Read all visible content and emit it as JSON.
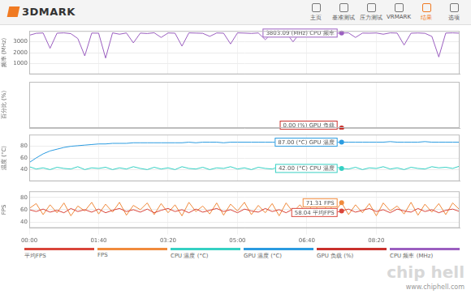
{
  "app": {
    "logo": "3DMARK",
    "nav": [
      "主页",
      "基准测试",
      "压力测试",
      "VRMARK",
      "结果",
      "选项"
    ],
    "active": "结果"
  },
  "watermark": {
    "logo": "chip hell",
    "url": "www.chiphell.com"
  },
  "chart_data": [
    {
      "type": "line",
      "ylabel": "频率 (MHz)",
      "grid": true,
      "legend": "bottom",
      "tick_labels": "y",
      "x": [
        0,
        10,
        20,
        30,
        40,
        50,
        60,
        70,
        80,
        90,
        100,
        110,
        120,
        130,
        140,
        150,
        160,
        170,
        180,
        190,
        200,
        210,
        220,
        230,
        240,
        250,
        260,
        270,
        280,
        290,
        300,
        310,
        320,
        330,
        340,
        350,
        360,
        370,
        380,
        390,
        400,
        410,
        420,
        430,
        440,
        450,
        460,
        470,
        480,
        490,
        500,
        510,
        520,
        530,
        540,
        550,
        560,
        570,
        580,
        590,
        600,
        610,
        620
      ],
      "xlim": [
        0,
        620
      ],
      "xticks": [
        {
          "value": 0,
          "label": "00:00"
        },
        {
          "value": 100,
          "label": "01:40"
        },
        {
          "value": 200,
          "label": "03:20"
        },
        {
          "value": 300,
          "label": "05:00"
        },
        {
          "value": 400,
          "label": "06:40"
        },
        {
          "value": 500,
          "label": "08:20"
        }
      ],
      "ylim": [
        0,
        4000
      ],
      "yticks": [
        1000,
        2000,
        3000
      ],
      "series": [
        {
          "name": "CPU 频率 (MHz)",
          "color": "#9b5fc0",
          "values": [
            3600,
            3780,
            3810,
            2400,
            3790,
            3820,
            3750,
            3300,
            1700,
            3800,
            3790,
            1500,
            3820,
            3700,
            3810,
            2900,
            3800,
            3760,
            3830,
            3400,
            3810,
            3790,
            2600,
            3820,
            3800,
            3780,
            3500,
            3810,
            3790,
            2800,
            3820,
            3800,
            3770,
            3810,
            3200,
            3800,
            3790,
            3820,
            3000,
            3810,
            3780,
            3800,
            3600,
            3810,
            3790,
            3803.09,
            3820,
            3400,
            3800,
            3790,
            3810,
            3700,
            3820,
            3800,
            2700,
            3790,
            3810,
            3780,
            3500,
            1600,
            3800,
            3820,
            3790
          ]
        }
      ],
      "annotations": [
        {
          "text": "3803.09 (MHz) CPU 频率",
          "series": "CPU 频率 (MHz)",
          "x": 450,
          "y": 3803.09
        }
      ]
    },
    {
      "type": "line",
      "ylabel": "百分比 (%)",
      "grid": true,
      "legend": "bottom",
      "tick_labels": false,
      "x": [
        0,
        10,
        20,
        30,
        40,
        50,
        60,
        70,
        80,
        90,
        100,
        110,
        120,
        130,
        140,
        150,
        160,
        170,
        180,
        190,
        200,
        210,
        220,
        230,
        240,
        250,
        260,
        270,
        280,
        290,
        300,
        310,
        320,
        330,
        340,
        350,
        360,
        370,
        380,
        390,
        400,
        410,
        420,
        430,
        440,
        450,
        460,
        470,
        480,
        490,
        500,
        510,
        520,
        530,
        540,
        550,
        560,
        570,
        580,
        590,
        600,
        610,
        620
      ],
      "xlim": [
        0,
        620
      ],
      "xticks": [
        {
          "value": 0,
          "label": "00:00"
        },
        {
          "value": 100,
          "label": "01:40"
        },
        {
          "value": 200,
          "label": "03:20"
        },
        {
          "value": 300,
          "label": "05:00"
        },
        {
          "value": 400,
          "label": "06:40"
        },
        {
          "value": 500,
          "label": "08:20"
        }
      ],
      "ylim": [
        0,
        100
      ],
      "yticks": [],
      "series": [
        {
          "name": "GPU 负载 (%)",
          "color": "#c9302c",
          "values": [
            0,
            0,
            0,
            0,
            0,
            0,
            0,
            0,
            0,
            0,
            0,
            0,
            0,
            0,
            0,
            0,
            0,
            0,
            0,
            0,
            0,
            0,
            0,
            0,
            0,
            0,
            0,
            0,
            0,
            0,
            0,
            0,
            0,
            0,
            0,
            0,
            0,
            0,
            0,
            0,
            0,
            0,
            0,
            0,
            0,
            0,
            0,
            0,
            0,
            0,
            0,
            0,
            0,
            0,
            0,
            0,
            0,
            0,
            0,
            0,
            0,
            0,
            0
          ]
        }
      ],
      "annotations": [
        {
          "text": "0.00 (%) GPU 负载",
          "series": "GPU 负载 (%)",
          "x": 450,
          "y": 0
        }
      ]
    },
    {
      "type": "line",
      "ylabel": "温度 (°C)",
      "grid": true,
      "legend": "bottom",
      "tick_labels": "y",
      "x": [
        0,
        10,
        20,
        30,
        40,
        50,
        60,
        70,
        80,
        90,
        100,
        110,
        120,
        130,
        140,
        150,
        160,
        170,
        180,
        190,
        200,
        210,
        220,
        230,
        240,
        250,
        260,
        270,
        280,
        290,
        300,
        310,
        320,
        330,
        340,
        350,
        360,
        370,
        380,
        390,
        400,
        410,
        420,
        430,
        440,
        450,
        460,
        470,
        480,
        490,
        500,
        510,
        520,
        530,
        540,
        550,
        560,
        570,
        580,
        590,
        600,
        610,
        620
      ],
      "xlim": [
        0,
        620
      ],
      "xticks": [
        {
          "value": 0,
          "label": "00:00"
        },
        {
          "value": 100,
          "label": "01:40"
        },
        {
          "value": 200,
          "label": "03:20"
        },
        {
          "value": 300,
          "label": "05:00"
        },
        {
          "value": 400,
          "label": "06:40"
        },
        {
          "value": 500,
          "label": "08:20"
        }
      ],
      "ylim": [
        20,
        100
      ],
      "yticks": [
        40,
        60,
        80
      ],
      "series": [
        {
          "name": "CPU 温度 (°C)",
          "color": "#35d0c3",
          "values": [
            45,
            41,
            43,
            40,
            44,
            42,
            41,
            45,
            40,
            43,
            42,
            44,
            40,
            43,
            41,
            45,
            42,
            40,
            44,
            41,
            43,
            40,
            45,
            42,
            41,
            44,
            40,
            43,
            42,
            45,
            41,
            43,
            40,
            44,
            42,
            41,
            45,
            40,
            43,
            42,
            44,
            41,
            43,
            40,
            45,
            42,
            41,
            44,
            40,
            43,
            42,
            45,
            41,
            43,
            40,
            44,
            42,
            41,
            45,
            43,
            44,
            42,
            46
          ]
        },
        {
          "name": "GPU 温度 (°C)",
          "color": "#2b9be0",
          "values": [
            52,
            60,
            67,
            72,
            75,
            78,
            80,
            81,
            82,
            83,
            84,
            84,
            85,
            85,
            85,
            86,
            86,
            86,
            86,
            86,
            86,
            86,
            86,
            87,
            86,
            87,
            87,
            87,
            86,
            87,
            87,
            87,
            87,
            87,
            87,
            87,
            87,
            87,
            87,
            87,
            87,
            87,
            87,
            87,
            87,
            87,
            87,
            87,
            87,
            87,
            87,
            87,
            88,
            87,
            87,
            87,
            87,
            88,
            87,
            87,
            87,
            87,
            87
          ]
        }
      ],
      "annotations": [
        {
          "text": "87.00 (°C) GPU 温度",
          "series": "GPU 温度 (°C)",
          "x": 450,
          "y": 87
        },
        {
          "text": "42.00 (°C) CPU 温度",
          "series": "CPU 温度 (°C)",
          "x": 450,
          "y": 42
        }
      ]
    },
    {
      "type": "line",
      "ylabel": "FPS",
      "grid": true,
      "legend": "bottom",
      "x": [
        0,
        10,
        20,
        30,
        40,
        50,
        60,
        70,
        80,
        90,
        100,
        110,
        120,
        130,
        140,
        150,
        160,
        170,
        180,
        190,
        200,
        210,
        220,
        230,
        240,
        250,
        260,
        270,
        280,
        290,
        300,
        310,
        320,
        330,
        340,
        350,
        360,
        370,
        380,
        390,
        400,
        410,
        420,
        430,
        440,
        450,
        460,
        470,
        480,
        490,
        500,
        510,
        520,
        530,
        540,
        550,
        560,
        570,
        580,
        590,
        600,
        610,
        620
      ],
      "xlim": [
        0,
        620
      ],
      "xticks": [
        {
          "value": 0,
          "label": "00:00"
        },
        {
          "value": 100,
          "label": "01:40"
        },
        {
          "value": 200,
          "label": "03:20"
        },
        {
          "value": 300,
          "label": "05:00"
        },
        {
          "value": 400,
          "label": "06:40"
        },
        {
          "value": 500,
          "label": "08:20"
        }
      ],
      "ylim": [
        30,
        90
      ],
      "yticks": [
        40,
        60,
        80
      ],
      "series": [
        {
          "name": "平均FPS",
          "color": "#d9453a",
          "values": [
            60,
            57,
            61,
            56,
            59,
            55,
            62,
            57,
            60,
            56,
            61,
            55,
            59,
            62,
            57,
            60,
            56,
            61,
            55,
            59,
            62,
            57,
            60,
            55,
            61,
            56,
            59,
            62,
            57,
            60,
            55,
            61,
            58,
            56,
            62,
            57,
            60,
            55,
            61,
            58,
            56,
            62,
            57,
            60,
            55,
            58.04,
            61,
            56,
            59,
            62,
            57,
            60,
            55,
            61,
            58,
            56,
            62,
            57,
            60,
            55,
            59,
            61,
            57
          ]
        },
        {
          "name": "FPS",
          "color": "#f08a3c",
          "values": [
            62,
            70,
            52,
            68,
            55,
            71,
            50,
            66,
            58,
            72,
            53,
            69,
            56,
            72,
            51,
            67,
            60,
            71,
            52,
            70,
            55,
            68,
            50,
            72,
            57,
            66,
            53,
            71,
            51,
            69,
            58,
            72,
            52,
            67,
            55,
            70,
            50,
            71,
            56,
            68,
            53,
            72,
            51,
            69,
            57,
            71.31,
            52,
            68,
            55,
            70,
            50,
            71,
            58,
            66,
            53,
            72,
            51,
            69,
            56,
            70,
            52,
            71,
            60
          ]
        }
      ],
      "annotations": [
        {
          "text": "71.31 FPS",
          "series": "FPS",
          "x": 450,
          "y": 71.31
        },
        {
          "text": "58.04 平均FPS",
          "series": "平均FPS",
          "x": 450,
          "y": 58.04
        }
      ]
    }
  ]
}
